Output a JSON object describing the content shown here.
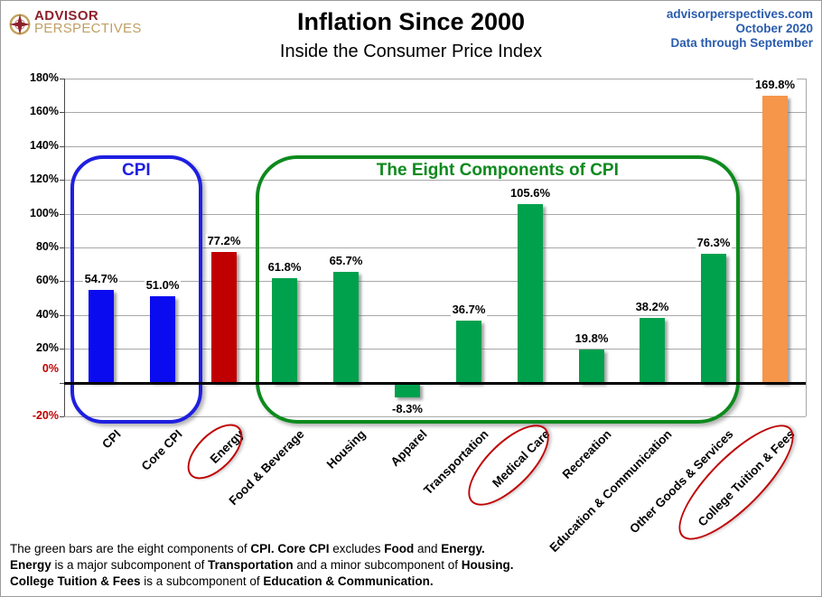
{
  "header": {
    "brand_line1": "ADVISOR",
    "brand_line2": "PERSPECTIVES",
    "title": "Inflation Since 2000",
    "subtitle": "Inside the Consumer Price Index",
    "source_site": "advisorperspectives.com",
    "source_date": "October 2020",
    "source_note": "Data through September"
  },
  "chart_data": {
    "type": "bar",
    "title": "Inflation Since 2000",
    "subtitle": "Inside the Consumer Price Index",
    "categories": [
      "CPI",
      "Core CPI",
      "Energy",
      "Food & Beverage",
      "Housing",
      "Apparel",
      "Transportation",
      "Medical Care",
      "Recreation",
      "Education & Communication",
      "Other Goods & Services",
      "College Tuition & Fees"
    ],
    "values": [
      54.7,
      51.0,
      77.2,
      61.8,
      65.7,
      -8.3,
      36.7,
      105.6,
      19.8,
      38.2,
      76.3,
      169.8
    ],
    "bar_colors": [
      "#0b0bf0",
      "#0b0bf0",
      "#c00000",
      "#00a14d",
      "#00a14d",
      "#00a14d",
      "#00a14d",
      "#00a14d",
      "#00a14d",
      "#00a14d",
      "#00a14d",
      "#f5964b"
    ],
    "value_label_suffix": "%",
    "xlabel": "",
    "ylabel": "",
    "ylim": [
      -20,
      180
    ],
    "ytick_step": 20,
    "ytick_suffix": "%",
    "grid": true,
    "legend": "none"
  },
  "annotations": {
    "cpi_box": {
      "label": "CPI",
      "color": "#1f1fe0",
      "from": "CPI",
      "to": "Core CPI"
    },
    "components_box": {
      "label": "The Eight Components of CPI",
      "color": "#0e8a1e",
      "from": "Food & Beverage",
      "to": "Other Goods & Services"
    },
    "circle_color": "#c00000",
    "circled_labels": [
      {
        "category": "Energy",
        "major": 72,
        "minor": 36
      },
      {
        "category": "Medical Care",
        "major": 112,
        "minor": 46
      },
      {
        "category": "College Tuition & Fees",
        "major": 166,
        "minor": 54
      }
    ]
  },
  "colors": {
    "axis_tick_default": "#000000",
    "axis_tick_highlight": "#c00000",
    "highlight_tick_values": [
      0,
      -20
    ],
    "source_text": "#2a5cad",
    "brand_red": "#8e202c",
    "brand_gold": "#bfa064"
  },
  "footer": {
    "lines": [
      [
        [
          "The green bars are the eight components of ",
          0
        ],
        [
          "CPI. Core CPI",
          1
        ],
        [
          " excludes ",
          0
        ],
        [
          "Food",
          1
        ],
        [
          " and ",
          0
        ],
        [
          "Energy.",
          1
        ]
      ],
      [
        [
          "Energy",
          1
        ],
        [
          " is a major subcomponent of ",
          0
        ],
        [
          "Transportation",
          1
        ],
        [
          " and a minor subcomponent of ",
          0
        ],
        [
          "Housing.",
          1
        ]
      ],
      [
        [
          "College Tuition & Fees",
          1
        ],
        [
          " is a subcomponent of ",
          0
        ],
        [
          "Education & Communication.",
          1
        ]
      ]
    ]
  }
}
